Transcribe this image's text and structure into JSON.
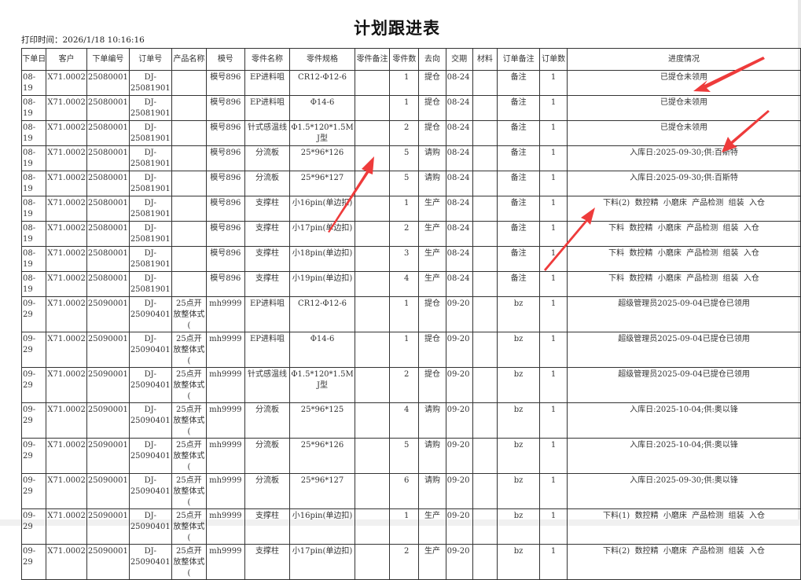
{
  "title": "计划跟进表",
  "print_time": "打印时间：2026/1/18 10:16:16",
  "columns": [
    "下单日",
    "客户",
    "下单编号",
    "订单号",
    "产品名称",
    "模号",
    "零件名称",
    "零件规格",
    "零件备注",
    "零件数",
    "去向",
    "交期",
    "材料",
    "订单备注",
    "订单数",
    "进度情况"
  ],
  "rows": [
    [
      "08-19",
      "X71.0002",
      "25080001",
      "DJ-25081901",
      "",
      "模号896",
      "EP进料咀",
      "CR12-Φ12-6",
      "",
      "1",
      "提仓",
      "08-24",
      "",
      "备注",
      "1",
      "已提仓未领用"
    ],
    [
      "08-19",
      "X71.0002",
      "25080001",
      "DJ-25081901",
      "",
      "模号896",
      "EP进料咀",
      "Φ14-6",
      "",
      "1",
      "提仓",
      "08-24",
      "",
      "备注",
      "1",
      "已提仓未领用"
    ],
    [
      "08-19",
      "X71.0002",
      "25080001",
      "DJ-25081901",
      "",
      "模号896",
      "针式感温线",
      "Φ1.5*120*1.5M J型",
      "",
      "2",
      "提仓",
      "08-24",
      "",
      "备注",
      "1",
      "已提仓未领用"
    ],
    [
      "08-19",
      "X71.0002",
      "25080001",
      "DJ-25081901",
      "",
      "模号896",
      "分流板",
      "25*96*126",
      "",
      "5",
      "请购",
      "08-24",
      "",
      "备注",
      "1",
      "入库日:2025-09-30;供:百斯特"
    ],
    [
      "08-19",
      "X71.0002",
      "25080001",
      "DJ-25081901",
      "",
      "模号896",
      "分流板",
      "25*96*127",
      "",
      "5",
      "请购",
      "08-24",
      "",
      "备注",
      "1",
      "入库日:2025-09-30;供:百斯特"
    ],
    [
      "08-19",
      "X71.0002",
      "25080001",
      "DJ-25081901",
      "",
      "模号896",
      "支撑柱",
      "小16pin(单边扣)",
      "",
      "1",
      "生产",
      "08-24",
      "",
      "备注",
      "1",
      "下料(2)  数控精  小磨床  产品检测  组装  入仓"
    ],
    [
      "08-19",
      "X71.0002",
      "25080001",
      "DJ-25081901",
      "",
      "模号896",
      "支撑柱",
      "小17pin(单边扣)",
      "",
      "2",
      "生产",
      "08-24",
      "",
      "备注",
      "1",
      "下料  数控精  小磨床  产品检测  组装  入仓"
    ],
    [
      "08-19",
      "X71.0002",
      "25080001",
      "DJ-25081901",
      "",
      "模号896",
      "支撑柱",
      "小18pin(单边扣)",
      "",
      "3",
      "生产",
      "08-24",
      "",
      "备注",
      "1",
      "下料  数控精  小磨床  产品检测  组装  入仓"
    ],
    [
      "08-19",
      "X71.0002",
      "25080001",
      "DJ-25081901",
      "",
      "模号896",
      "支撑柱",
      "小19pin(单边扣)",
      "",
      "4",
      "生产",
      "08-24",
      "",
      "备注",
      "1",
      "下料  数控精  小磨床  产品检测  组装  入仓"
    ],
    [
      "09-29",
      "X71.0002",
      "25090001",
      "DJ-25090401",
      "25点开放整体式(",
      "mh9999",
      "EP进料咀",
      "CR12-Φ12-6",
      "",
      "1",
      "提仓",
      "09-20",
      "",
      "bz",
      "1",
      "超级管理员2025-09-04已提仓已领用"
    ],
    [
      "09-29",
      "X71.0002",
      "25090001",
      "DJ-25090401",
      "25点开放整体式(",
      "mh9999",
      "EP进料咀",
      "Φ14-6",
      "",
      "1",
      "提仓",
      "09-20",
      "",
      "bz",
      "1",
      "超级管理员2025-09-04已提仓已领用"
    ],
    [
      "09-29",
      "X71.0002",
      "25090001",
      "DJ-25090401",
      "25点开放整体式(",
      "mh9999",
      "针式感温线",
      "Φ1.5*120*1.5M J型",
      "",
      "2",
      "提仓",
      "09-20",
      "",
      "bz",
      "1",
      "超级管理员2025-09-04已提仓已领用"
    ],
    [
      "09-29",
      "X71.0002",
      "25090001",
      "DJ-25090401",
      "25点开放整体式(",
      "mh9999",
      "分流板",
      "25*96*125",
      "",
      "4",
      "请购",
      "09-20",
      "",
      "bz",
      "1",
      "入库日:2025-10-04;供:奥以锋"
    ],
    [
      "09-29",
      "X71.0002",
      "25090001",
      "DJ-25090401",
      "25点开放整体式(",
      "mh9999",
      "分流板",
      "25*96*126",
      "",
      "5",
      "请购",
      "09-20",
      "",
      "bz",
      "1",
      "入库日:2025-10-04;供:奥以锋"
    ],
    [
      "09-29",
      "X71.0002",
      "25090001",
      "DJ-25090401",
      "25点开放整体式(",
      "mh9999",
      "分流板",
      "25*96*127",
      "",
      "6",
      "请购",
      "09-20",
      "",
      "bz",
      "1",
      "入库日:2025-09-30;供:奥以锋"
    ],
    [
      "09-29",
      "X71.0002",
      "25090001",
      "DJ-25090401",
      "25点开放整体式(",
      "mh9999",
      "支撑柱",
      "小16pin(单边扣)",
      "",
      "1",
      "生产",
      "09-20",
      "",
      "bz",
      "1",
      "下料(1)  数控精  小磨床  产品检测  组装  入仓"
    ],
    [
      "09-29",
      "X71.0002",
      "25090001",
      "DJ-25090401",
      "25点开放整体式(",
      "mh9999",
      "支撑柱",
      "小17pin(单边扣)",
      "",
      "2",
      "生产",
      "09-20",
      "",
      "bz",
      "1",
      "下料(2)  数控精  小磨床  产品检测  组装  入仓"
    ]
  ],
  "annotation_color": "#ee3b3b"
}
